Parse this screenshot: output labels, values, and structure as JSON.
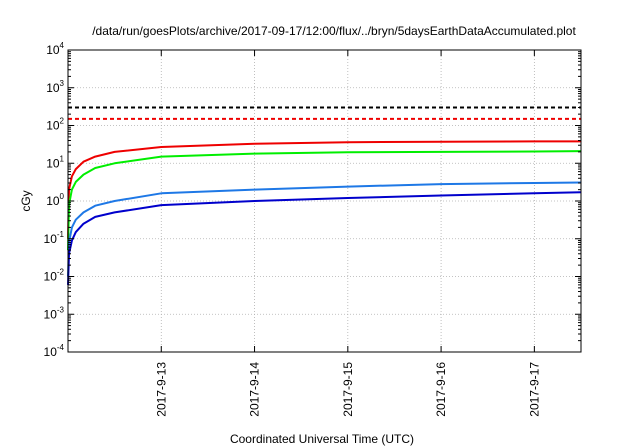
{
  "chart_data": {
    "type": "line",
    "title": "/data/run/goesPlots/archive/2017-09-17/12:00/flux/../bryn/5daysEarthDataAccumulated.plot",
    "xlabel": "Coordinated Universal Time (UTC)",
    "ylabel": "cGy",
    "yscale": "log",
    "ylim": [
      0.0001,
      10000
    ],
    "xlim": [
      "2017-09-12 00:00",
      "2017-09-17 12:00"
    ],
    "grid": true,
    "legend": "none",
    "x_tick_labels": [
      {
        "date": "2017-09-13",
        "label": "2017-9-13"
      },
      {
        "date": "2017-09-14",
        "label": "2017-9-14"
      },
      {
        "date": "2017-09-15",
        "label": "2017-9-15"
      },
      {
        "date": "2017-09-16",
        "label": "2017-9-16"
      },
      {
        "date": "2017-09-17",
        "label": "2017-9-17"
      }
    ],
    "y_tick_labels": [
      {
        "value": 0.0001,
        "base": "10",
        "exponent": "-4"
      },
      {
        "value": 0.001,
        "base": "10",
        "exponent": "-3"
      },
      {
        "value": 0.01,
        "base": "10",
        "exponent": "-2"
      },
      {
        "value": 0.1,
        "base": "10",
        "exponent": "-1"
      },
      {
        "value": 1,
        "base": "10",
        "exponent": "0"
      },
      {
        "value": 10,
        "base": "10",
        "exponent": "1"
      },
      {
        "value": 100,
        "base": "10",
        "exponent": "2"
      },
      {
        "value": 1000,
        "base": "10",
        "exponent": "3"
      },
      {
        "value": 10000,
        "base": "10",
        "exponent": "4"
      }
    ],
    "thresholds": [
      {
        "value": 300,
        "color": "#000000",
        "dash": true
      },
      {
        "value": 150,
        "color": "#ee0000",
        "dash": true
      }
    ],
    "series": [
      {
        "color": "#ee0000",
        "points": [
          [
            "2017-09-12 00:00",
            0.1
          ],
          [
            "2017-09-12 00:15",
            2
          ],
          [
            "2017-09-12 01:00",
            4.5
          ],
          [
            "2017-09-12 02:00",
            7
          ],
          [
            "2017-09-12 04:00",
            11
          ],
          [
            "2017-09-12 07:00",
            15
          ],
          [
            "2017-09-12 12:00",
            20
          ],
          [
            "2017-09-13 00:00",
            27
          ],
          [
            "2017-09-14 00:00",
            33
          ],
          [
            "2017-09-15 00:00",
            36
          ],
          [
            "2017-09-16 00:00",
            37
          ],
          [
            "2017-09-17 00:00",
            38
          ],
          [
            "2017-09-17 12:00",
            38
          ]
        ]
      },
      {
        "color": "#00ee00",
        "points": [
          [
            "2017-09-12 00:00",
            0.05
          ],
          [
            "2017-09-12 00:15",
            0.8
          ],
          [
            "2017-09-12 01:00",
            2
          ],
          [
            "2017-09-12 02:00",
            3.2
          ],
          [
            "2017-09-12 04:00",
            5
          ],
          [
            "2017-09-12 07:00",
            7.5
          ],
          [
            "2017-09-12 12:00",
            10
          ],
          [
            "2017-09-13 00:00",
            15
          ],
          [
            "2017-09-14 00:00",
            18
          ],
          [
            "2017-09-15 00:00",
            19.5
          ],
          [
            "2017-09-16 00:00",
            20
          ],
          [
            "2017-09-17 00:00",
            20.5
          ],
          [
            "2017-09-17 12:00",
            21
          ]
        ]
      },
      {
        "color": "#1e78e6",
        "points": [
          [
            "2017-09-12 00:00",
            0.01
          ],
          [
            "2017-09-12 00:15",
            0.08
          ],
          [
            "2017-09-12 01:00",
            0.2
          ],
          [
            "2017-09-12 02:00",
            0.32
          ],
          [
            "2017-09-12 04:00",
            0.5
          ],
          [
            "2017-09-12 07:00",
            0.75
          ],
          [
            "2017-09-12 12:00",
            1.0
          ],
          [
            "2017-09-13 00:00",
            1.6
          ],
          [
            "2017-09-14 00:00",
            2.0
          ],
          [
            "2017-09-15 00:00",
            2.4
          ],
          [
            "2017-09-16 00:00",
            2.8
          ],
          [
            "2017-09-17 00:00",
            3.0
          ],
          [
            "2017-09-17 12:00",
            3.1
          ]
        ]
      },
      {
        "color": "#0000cc",
        "points": [
          [
            "2017-09-12 00:00",
            0.006
          ],
          [
            "2017-09-12 00:15",
            0.04
          ],
          [
            "2017-09-12 01:00",
            0.09
          ],
          [
            "2017-09-12 02:00",
            0.15
          ],
          [
            "2017-09-12 04:00",
            0.25
          ],
          [
            "2017-09-12 07:00",
            0.38
          ],
          [
            "2017-09-12 12:00",
            0.5
          ],
          [
            "2017-09-13 00:00",
            0.78
          ],
          [
            "2017-09-14 00:00",
            1.0
          ],
          [
            "2017-09-15 00:00",
            1.2
          ],
          [
            "2017-09-16 00:00",
            1.4
          ],
          [
            "2017-09-17 00:00",
            1.6
          ],
          [
            "2017-09-17 12:00",
            1.7
          ]
        ]
      }
    ]
  }
}
